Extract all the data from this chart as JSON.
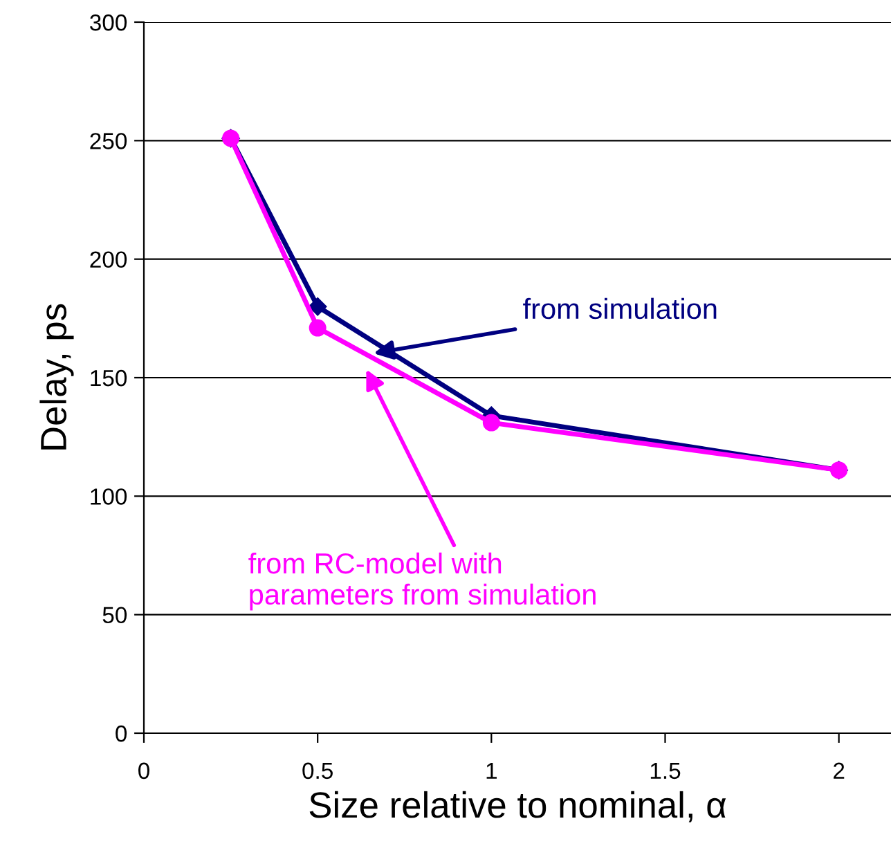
{
  "chart_data": {
    "type": "line",
    "xlabel": "Size relative to nominal, α",
    "ylabel": "Delay, ps",
    "x": [
      0.25,
      0.5,
      1,
      2
    ],
    "series": [
      {
        "name": "from simulation",
        "color": "#000080",
        "marker": "diamond",
        "values": [
          251,
          180,
          134,
          111
        ]
      },
      {
        "name": "from RC-model with\nparameters from simulation",
        "color": "#ff00ff",
        "marker": "circle",
        "values": [
          251,
          171,
          131,
          111
        ]
      }
    ],
    "xlim": [
      0,
      2.15
    ],
    "xticks": [
      0,
      0.5,
      1,
      1.5,
      2
    ],
    "ylim": [
      0,
      300
    ],
    "yticks": [
      0,
      50,
      100,
      150,
      200,
      250,
      300
    ],
    "grid": "y",
    "legend": false
  }
}
